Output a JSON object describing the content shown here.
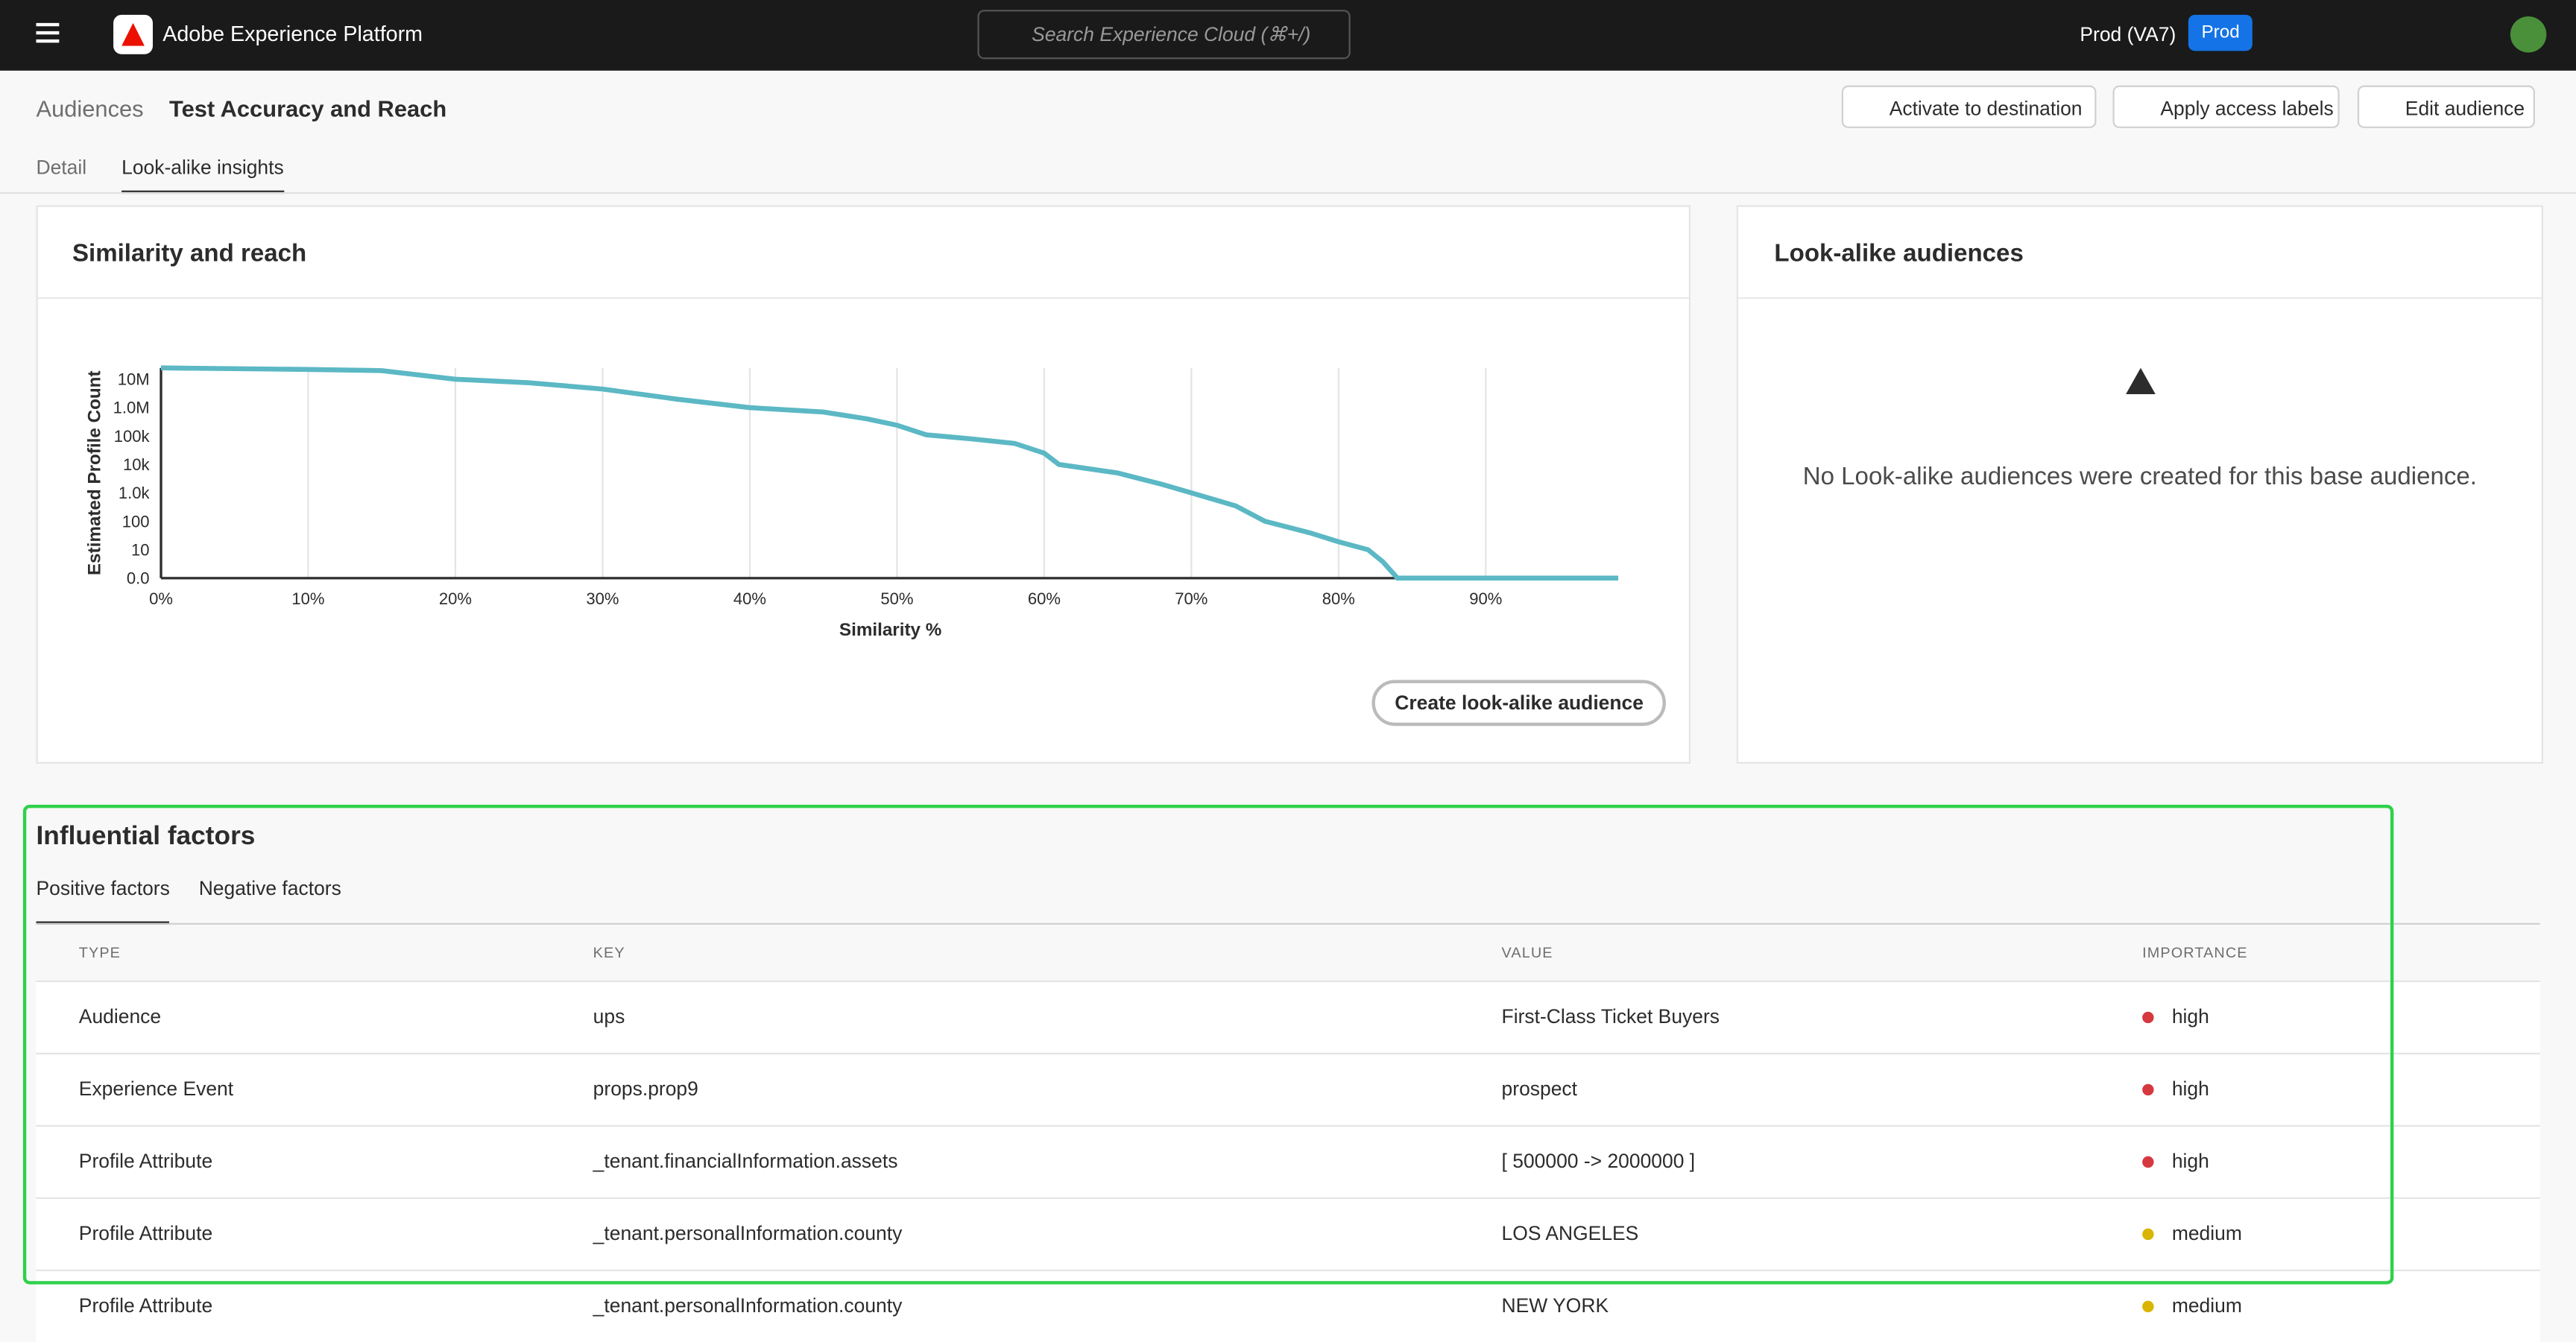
{
  "header": {
    "product": "Adobe Experience Platform",
    "search_placeholder": "Search Experience Cloud (⌘+/)",
    "sandbox": "Prod (VA7)",
    "sandbox_badge": "Prod"
  },
  "breadcrumb": {
    "parent": "Audiences",
    "current": "Test Accuracy and Reach"
  },
  "actions": [
    "Activate to destination",
    "Apply access labels",
    "Edit audience"
  ],
  "tabs": [
    "Detail",
    "Look-alike insights"
  ],
  "similarity_panel": {
    "title": "Similarity and reach",
    "button": "Create look-alike audience",
    "chart_data": {
      "type": "line",
      "x_label": "Similarity %",
      "y_label": "Estimated Profile Count",
      "yscale": "symlog",
      "color": "#5bb8c4",
      "x": [
        0,
        10,
        15,
        20,
        25,
        30,
        35,
        40,
        45,
        48,
        50,
        52,
        55,
        58,
        60,
        61,
        65,
        68,
        70,
        73,
        75,
        78,
        80,
        82,
        83,
        84,
        90,
        99
      ],
      "values": [
        25000000,
        22000000,
        20000000,
        10000000,
        7500000,
        4500000,
        2000000,
        1000000,
        700000,
        400000,
        240000,
        110000,
        80000,
        55000,
        25000,
        10000,
        5000,
        2000,
        1000,
        350,
        100,
        40,
        19,
        10,
        5.8,
        0,
        0,
        0
      ],
      "xlim": [
        0,
        99
      ],
      "ylim": [
        0,
        25000000
      ],
      "xticks": [
        {
          "value": 0,
          "label": "0%"
        },
        {
          "value": 10,
          "label": "10%"
        },
        {
          "value": 20,
          "label": "20%"
        },
        {
          "value": 30,
          "label": "30%"
        },
        {
          "value": 40,
          "label": "40%"
        },
        {
          "value": 50,
          "label": "50%"
        },
        {
          "value": 60,
          "label": "60%"
        },
        {
          "value": 70,
          "label": "70%"
        },
        {
          "value": 80,
          "label": "80%"
        },
        {
          "value": 90,
          "label": "90%"
        }
      ],
      "yticks": [
        {
          "value": 0,
          "label": "0.0"
        },
        10,
        100,
        {
          "value": 1000,
          "label": "1.0k"
        },
        {
          "value": 10000,
          "label": "10k"
        },
        {
          "value": 100000,
          "label": "100k"
        },
        {
          "value": 1000000,
          "label": "1.0M"
        },
        {
          "value": 10000000,
          "label": "10M"
        }
      ],
      "grid": true
    }
  },
  "lookalike_panel": {
    "title": "Look-alike audiences",
    "message": "No Look-alike audiences were created for this base audience."
  },
  "factors": {
    "title": "Influential factors",
    "tabs": [
      "Positive factors",
      "Negative factors"
    ],
    "table": {
      "columns": [
        "TYPE",
        "KEY",
        "VALUE",
        "IMPORTANCE"
      ],
      "rows": [
        [
          "Audience",
          "ups",
          "First-Class Ticket Buyers",
          "high"
        ],
        [
          "Experience Event",
          "props.prop9",
          "prospect",
          "high"
        ],
        [
          "Profile Attribute",
          "_tenant.financialInformation.assets",
          "[ 500000 -> 2000000 ]",
          "high"
        ],
        [
          "Profile Attribute",
          "_tenant.personalInformation.county",
          "LOS ANGELES",
          "medium"
        ],
        [
          "Profile Attribute",
          "_tenant.personalInformation.county",
          "NEW YORK",
          "medium"
        ]
      ],
      "importance_colors": [
        "#d7373f",
        "#d7373f",
        "#d7373f",
        "#d9b400",
        "#d9b400"
      ]
    }
  }
}
